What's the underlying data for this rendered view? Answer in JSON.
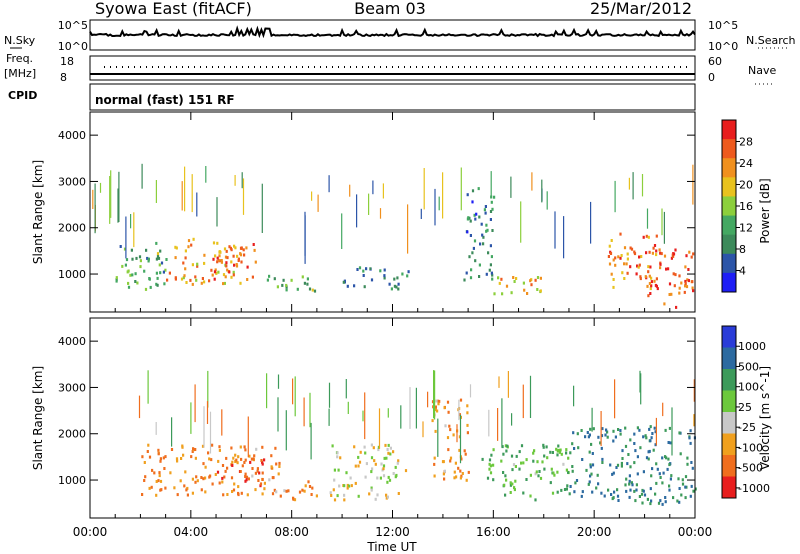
{
  "header": {
    "station": "Syowa East (fitACF)",
    "beam": "Beam 03",
    "date": "25/Mar/2012"
  },
  "nsky_panel": {
    "left_label": "N.Sky",
    "right_label": "N.Search",
    "ticks_left": [
      "10^5",
      "10^0"
    ],
    "ticks_right": [
      "10^5",
      "10^0"
    ]
  },
  "freq_panel": {
    "left_label_1": "Freq.",
    "left_label_2": "[MHz]",
    "right_label": "Nave",
    "ticks_left": [
      "18",
      "8"
    ],
    "ticks_right": [
      "60",
      "0"
    ]
  },
  "cpid_panel": {
    "label": "CPID",
    "text": "normal (fast) 151 RF"
  },
  "time_axis": {
    "label": "Time UT",
    "ticks": [
      "00:00",
      "04:00",
      "08:00",
      "12:00",
      "16:00",
      "20:00",
      "00:00"
    ]
  },
  "colors": {
    "power_scale": [
      "#1e1ef5",
      "#2c55a8",
      "#3c8a5a",
      "#44a862",
      "#8ccf3c",
      "#e8c21e",
      "#f0901e",
      "#ee5a1e",
      "#e81e1e"
    ],
    "velocity_scale": [
      "#e81e1e",
      "#f06e1e",
      "#f0a01e",
      "#c8c8c8",
      "#6cc83c",
      "#3c9a5a",
      "#2c6aa0",
      "#2a3cd8"
    ]
  },
  "chart_data": [
    {
      "type": "heatmap",
      "title": "Power",
      "ylabel": "Slant Range [km]",
      "xlabel": "",
      "ylim": [
        180,
        4500
      ],
      "yticks": [
        1000,
        2000,
        3000,
        4000
      ],
      "xlim": [
        "00:00",
        "24:00"
      ],
      "colorbar": {
        "label": "Power [dB]",
        "ticks": [
          4,
          8,
          12,
          16,
          20,
          24,
          28
        ],
        "range": [
          0,
          32
        ]
      },
      "regions": [
        {
          "t": [
            1.0,
            3.0
          ],
          "range_km": [
            600,
            1700
          ],
          "value": 12
        },
        {
          "t": [
            3.0,
            6.0
          ],
          "range_km": [
            800,
            1800
          ],
          "value": 22
        },
        {
          "t": [
            4.8,
            6.6
          ],
          "range_km": [
            900,
            1700
          ],
          "value": 26
        },
        {
          "t": [
            7.0,
            9.0
          ],
          "range_km": [
            600,
            1000
          ],
          "value": 14
        },
        {
          "t": [
            10.0,
            12.6
          ],
          "range_km": [
            700,
            1200
          ],
          "value": 8
        },
        {
          "t": [
            14.8,
            16.0
          ],
          "range_km": [
            900,
            2900
          ],
          "value": 8
        },
        {
          "t": [
            16.0,
            18.5
          ],
          "range_km": [
            600,
            1000
          ],
          "value": 22
        },
        {
          "t": [
            20.5,
            22.5
          ],
          "range_km": [
            700,
            1900
          ],
          "value": 24
        },
        {
          "t": [
            22.0,
            24.0
          ],
          "range_km": [
            300,
            1600
          ],
          "value": 28
        }
      ]
    },
    {
      "type": "heatmap",
      "title": "Velocity",
      "ylabel": "Slant Range [km]",
      "xlabel": "Time UT",
      "ylim": [
        180,
        4500
      ],
      "yticks": [
        1000,
        2000,
        3000,
        4000
      ],
      "xlim": [
        "00:00",
        "24:00"
      ],
      "colorbar": {
        "label": "Velocity [m s^-1]",
        "ticks": [
          1000,
          500,
          100,
          25,
          -25,
          -100,
          -500,
          -1000
        ]
      },
      "regions": [
        {
          "t": [
            2.0,
            7.5
          ],
          "range_km": [
            700,
            1800
          ],
          "value": -100
        },
        {
          "t": [
            5.0,
            7.0
          ],
          "range_km": [
            900,
            1500
          ],
          "value": -500
        },
        {
          "t": [
            7.0,
            9.0
          ],
          "range_km": [
            600,
            1000
          ],
          "value": -100
        },
        {
          "t": [
            9.5,
            12.5
          ],
          "range_km": [
            600,
            1800
          ],
          "value": 0
        },
        {
          "t": [
            13.5,
            15.0
          ],
          "range_km": [
            1000,
            2800
          ],
          "value": -100
        },
        {
          "t": [
            15.5,
            19.0
          ],
          "range_km": [
            600,
            1800
          ],
          "value": 100
        },
        {
          "t": [
            19.0,
            24.0
          ],
          "range_km": [
            500,
            2200
          ],
          "value": 500
        }
      ]
    }
  ]
}
